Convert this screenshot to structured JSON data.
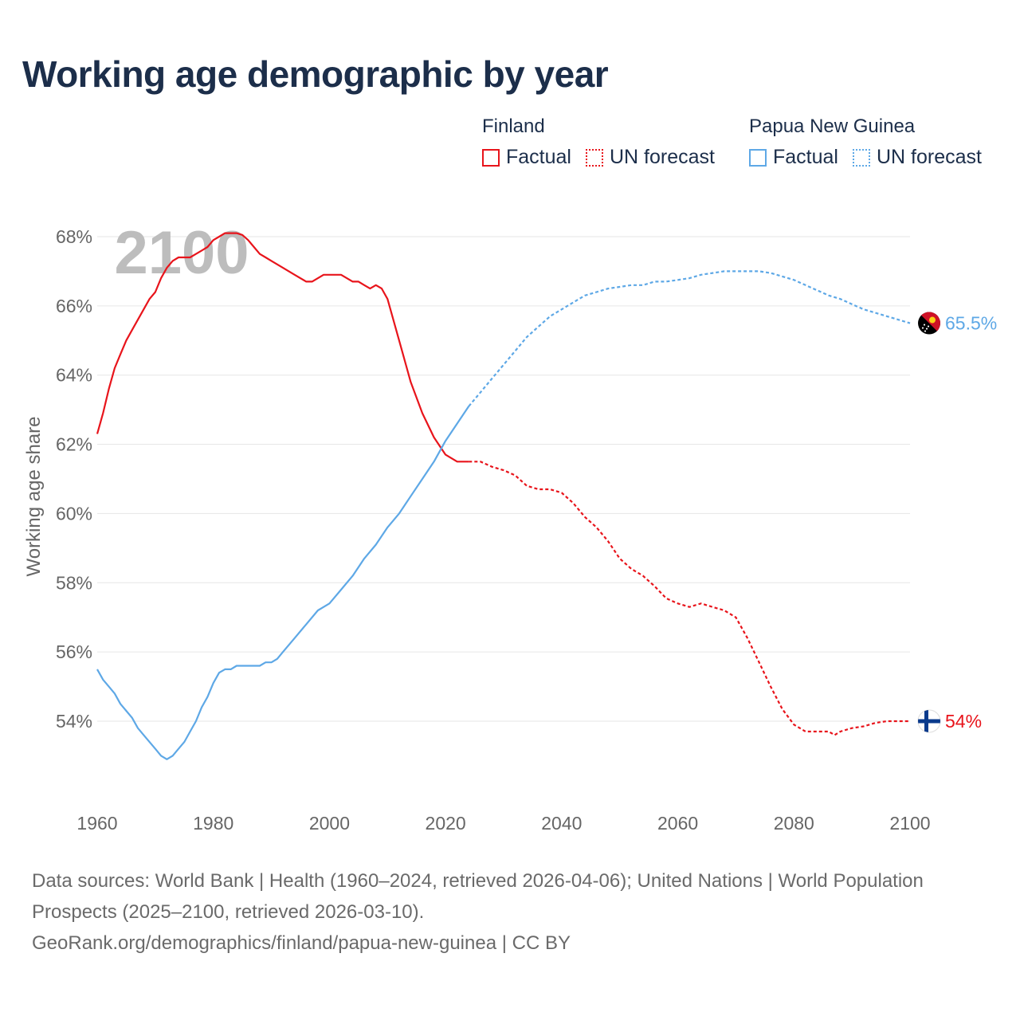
{
  "title": "Working age demographic by year",
  "legend": {
    "groups": [
      {
        "country": "Finland",
        "factual_label": "Factual",
        "forecast_label": "UN forecast",
        "color": "#e8141b"
      },
      {
        "country": "Papua New Guinea",
        "factual_label": "Factual",
        "forecast_label": "UN forecast",
        "color": "#5ea8e6"
      }
    ]
  },
  "year_watermark": "2100",
  "footer": {
    "sources": "Data sources: World Bank | Health (1960–2024, retrieved 2026-04-06); United Nations | World Population Prospects (2025–2100, retrieved 2026-03-10).",
    "attribution": "GeoRank.org/demographics/finland/papua-new-guinea | CC BY"
  },
  "chart_data": {
    "type": "line",
    "title": "Working age demographic by year",
    "xlabel": "",
    "ylabel": "Working age share",
    "xlim": [
      1960,
      2100
    ],
    "ylim": [
      52,
      68.5
    ],
    "x_ticks": [
      1960,
      1980,
      2000,
      2020,
      2040,
      2060,
      2080,
      2100
    ],
    "x_tick_labels": [
      "1960",
      "1980",
      "2000",
      "2020",
      "2040",
      "2060",
      "2080",
      "2100"
    ],
    "y_ticks": [
      54,
      56,
      58,
      60,
      62,
      64,
      66,
      68
    ],
    "y_tick_labels": [
      "54%",
      "56%",
      "58%",
      "60%",
      "62%",
      "64%",
      "66%",
      "68%"
    ],
    "grid": true,
    "forecast_start": 2024,
    "series": [
      {
        "name": "Finland",
        "color": "#e8141b",
        "end_label": "54%",
        "end_icon": "finland-flag-icon",
        "x": [
          1960,
          1961,
          1962,
          1963,
          1964,
          1965,
          1966,
          1967,
          1968,
          1969,
          1970,
          1971,
          1972,
          1973,
          1974,
          1975,
          1976,
          1977,
          1978,
          1979,
          1980,
          1981,
          1982,
          1983,
          1984,
          1985,
          1986,
          1987,
          1988,
          1989,
          1990,
          1992,
          1994,
          1996,
          1997,
          1999,
          2000,
          2002,
          2004,
          2005,
          2006,
          2007,
          2008,
          2009,
          2010,
          2012,
          2014,
          2016,
          2018,
          2020,
          2022,
          2024,
          2026,
          2028,
          2030,
          2032,
          2034,
          2036,
          2038,
          2040,
          2042,
          2044,
          2046,
          2048,
          2050,
          2052,
          2054,
          2056,
          2058,
          2060,
          2062,
          2064,
          2066,
          2068,
          2070,
          2072,
          2074,
          2076,
          2078,
          2080,
          2082,
          2084,
          2086,
          2087,
          2088,
          2090,
          2092,
          2094,
          2096,
          2098,
          2100
        ],
        "y": [
          62.3,
          62.9,
          63.6,
          64.2,
          64.6,
          65.0,
          65.3,
          65.6,
          65.9,
          66.2,
          66.4,
          66.8,
          67.1,
          67.3,
          67.4,
          67.4,
          67.4,
          67.5,
          67.6,
          67.7,
          67.9,
          68.0,
          68.1,
          68.1,
          68.1,
          68.05,
          67.9,
          67.7,
          67.5,
          67.4,
          67.3,
          67.1,
          66.9,
          66.7,
          66.7,
          66.9,
          66.9,
          66.9,
          66.7,
          66.7,
          66.6,
          66.5,
          66.6,
          66.5,
          66.2,
          65.0,
          63.8,
          62.9,
          62.2,
          61.7,
          61.5,
          61.5,
          61.5,
          61.35,
          61.25,
          61.1,
          60.8,
          60.7,
          60.7,
          60.6,
          60.3,
          59.9,
          59.6,
          59.2,
          58.7,
          58.4,
          58.2,
          57.9,
          57.55,
          57.4,
          57.3,
          57.4,
          57.3,
          57.2,
          57.0,
          56.4,
          55.7,
          55.0,
          54.35,
          53.9,
          53.7,
          53.7,
          53.7,
          53.6,
          53.7,
          53.8,
          53.85,
          53.95,
          54.0,
          54.0,
          54.0
        ]
      },
      {
        "name": "Papua New Guinea",
        "color": "#5ea8e6",
        "end_label": "65.5%",
        "end_icon": "papua-new-guinea-flag-icon",
        "x": [
          1960,
          1961,
          1962,
          1963,
          1964,
          1965,
          1966,
          1967,
          1968,
          1969,
          1970,
          1971,
          1972,
          1973,
          1974,
          1975,
          1976,
          1977,
          1978,
          1979,
          1980,
          1981,
          1982,
          1983,
          1984,
          1985,
          1986,
          1987,
          1988,
          1989,
          1990,
          1991,
          1992,
          1994,
          1996,
          1998,
          2000,
          2002,
          2004,
          2006,
          2008,
          2010,
          2012,
          2014,
          2016,
          2018,
          2020,
          2022,
          2024,
          2026,
          2028,
          2030,
          2032,
          2034,
          2036,
          2038,
          2040,
          2042,
          2044,
          2046,
          2048,
          2050,
          2052,
          2054,
          2056,
          2058,
          2060,
          2062,
          2064,
          2066,
          2068,
          2070,
          2072,
          2074,
          2076,
          2078,
          2080,
          2082,
          2084,
          2086,
          2088,
          2090,
          2092,
          2094,
          2096,
          2098,
          2100
        ],
        "y": [
          55.5,
          55.2,
          55.0,
          54.8,
          54.5,
          54.3,
          54.1,
          53.8,
          53.6,
          53.4,
          53.2,
          53.0,
          52.9,
          53.0,
          53.2,
          53.4,
          53.7,
          54.0,
          54.4,
          54.7,
          55.1,
          55.4,
          55.5,
          55.5,
          55.6,
          55.6,
          55.6,
          55.6,
          55.6,
          55.7,
          55.7,
          55.8,
          56.0,
          56.4,
          56.8,
          57.2,
          57.4,
          57.8,
          58.2,
          58.7,
          59.1,
          59.6,
          60.0,
          60.5,
          61.0,
          61.5,
          62.1,
          62.6,
          63.1,
          63.5,
          63.9,
          64.3,
          64.7,
          65.1,
          65.4,
          65.7,
          65.9,
          66.1,
          66.3,
          66.4,
          66.5,
          66.55,
          66.6,
          66.6,
          66.7,
          66.7,
          66.75,
          66.8,
          66.9,
          66.95,
          67.0,
          67.0,
          67.0,
          67.0,
          66.95,
          66.85,
          66.75,
          66.6,
          66.45,
          66.3,
          66.2,
          66.05,
          65.9,
          65.8,
          65.7,
          65.6,
          65.5
        ]
      }
    ]
  }
}
